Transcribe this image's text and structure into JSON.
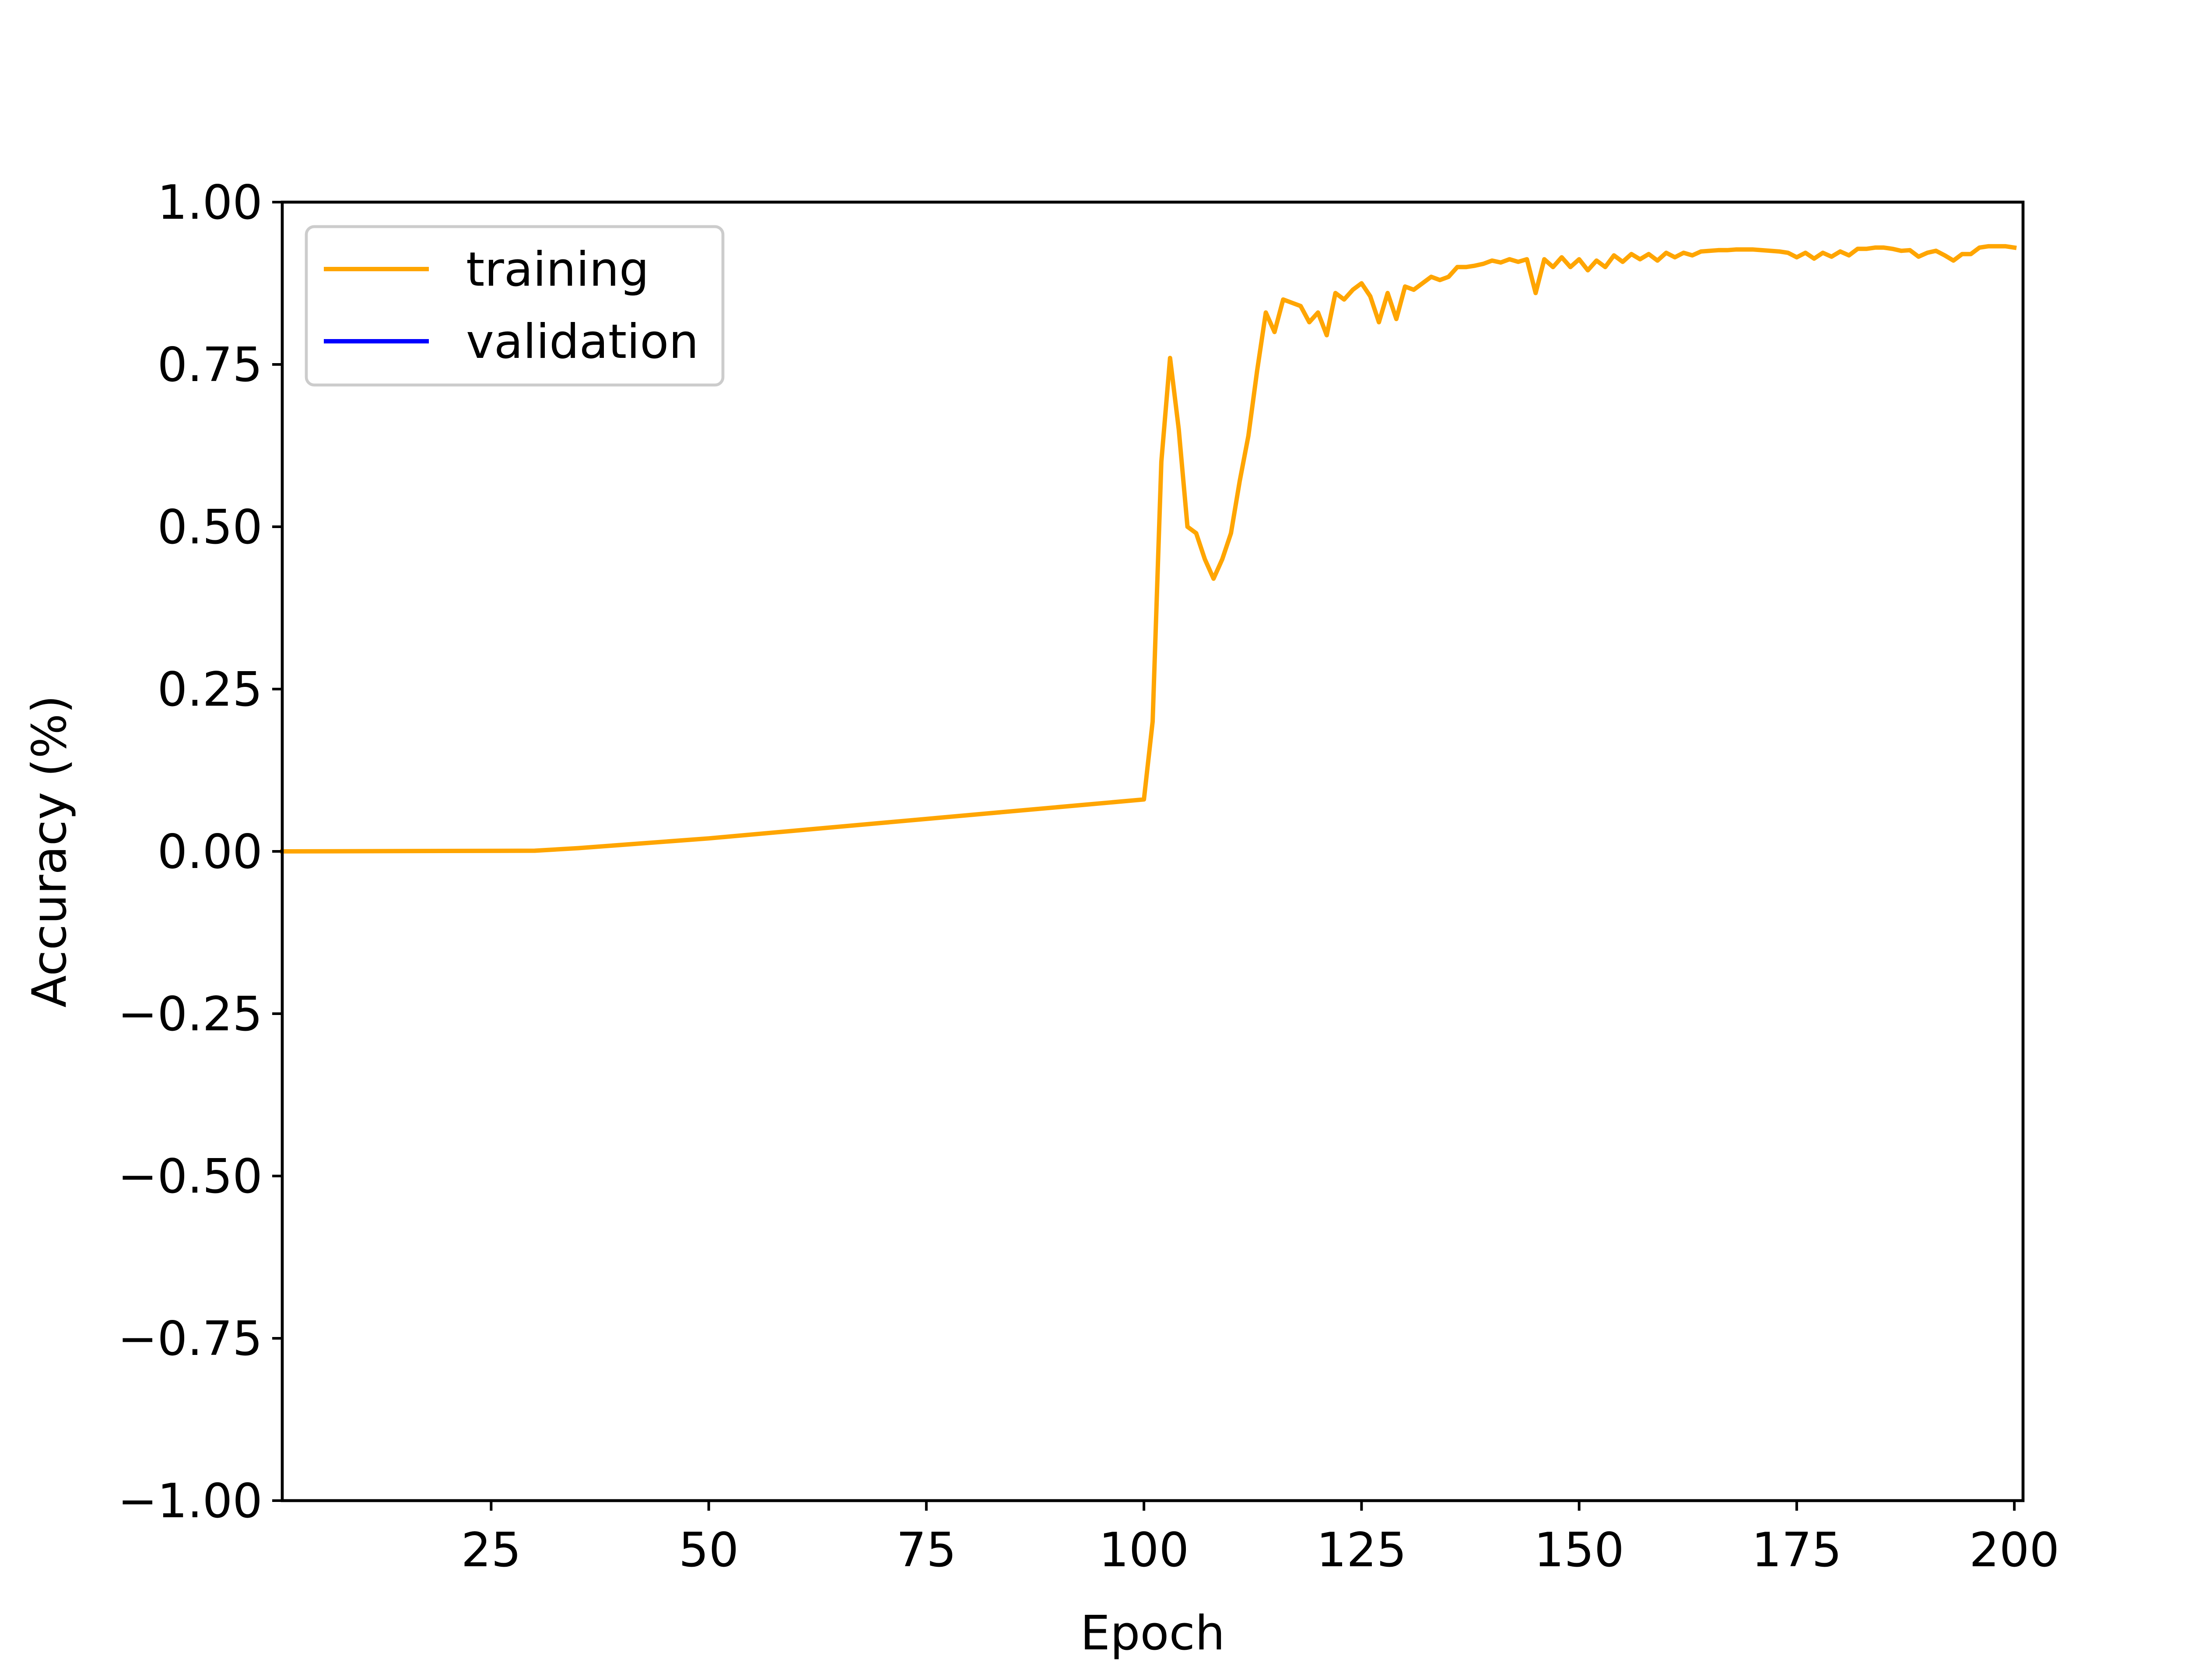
{
  "chart_data": {
    "type": "line",
    "title": "",
    "xlabel": "Epoch",
    "ylabel": "Accuracy (%)",
    "xlim": [
      1,
      201
    ],
    "ylim": [
      -1.0,
      1.0
    ],
    "xticks": [
      25,
      50,
      75,
      100,
      125,
      150,
      175,
      200
    ],
    "yticks": [
      -1.0,
      -0.75,
      -0.5,
      -0.25,
      0.0,
      0.25,
      0.5,
      0.75,
      1.0
    ],
    "xtick_labels": [
      "25",
      "50",
      "75",
      "100",
      "125",
      "150",
      "175",
      "200"
    ],
    "ytick_labels": [
      "−1.00",
      "−0.75",
      "−0.50",
      "−0.25",
      "0.00",
      "0.25",
      "0.50",
      "0.75",
      "1.00"
    ],
    "grid": false,
    "legend_position": "top-left",
    "series": [
      {
        "name": "training",
        "color": "#ffa500",
        "points": [
          [
            1,
            0.0
          ],
          [
            30,
            0.001
          ],
          [
            35,
            0.005
          ],
          [
            50,
            0.02
          ],
          [
            75,
            0.05
          ],
          [
            100,
            0.08
          ],
          [
            101,
            0.2
          ],
          [
            102,
            0.6
          ],
          [
            103,
            0.76
          ],
          [
            104,
            0.65
          ],
          [
            105,
            0.5
          ],
          [
            106,
            0.49
          ],
          [
            107,
            0.45
          ],
          [
            108,
            0.42
          ],
          [
            109,
            0.45
          ],
          [
            110,
            0.49
          ],
          [
            111,
            0.57
          ],
          [
            112,
            0.64
          ],
          [
            113,
            0.74
          ],
          [
            114,
            0.83
          ],
          [
            115,
            0.8
          ],
          [
            116,
            0.85
          ],
          [
            117,
            0.845
          ],
          [
            118,
            0.84
          ],
          [
            119,
            0.815
          ],
          [
            120,
            0.83
          ],
          [
            121,
            0.795
          ],
          [
            122,
            0.86
          ],
          [
            123,
            0.85
          ],
          [
            124,
            0.865
          ],
          [
            125,
            0.875
          ],
          [
            126,
            0.855
          ],
          [
            127,
            0.815
          ],
          [
            128,
            0.86
          ],
          [
            129,
            0.82
          ],
          [
            130,
            0.87
          ],
          [
            131,
            0.865
          ],
          [
            132,
            0.875
          ],
          [
            133,
            0.885
          ],
          [
            134,
            0.88
          ],
          [
            135,
            0.885
          ],
          [
            136,
            0.9
          ],
          [
            137,
            0.9
          ],
          [
            138,
            0.902
          ],
          [
            139,
            0.905
          ],
          [
            140,
            0.91
          ],
          [
            141,
            0.907
          ],
          [
            142,
            0.912
          ],
          [
            143,
            0.908
          ],
          [
            144,
            0.912
          ],
          [
            145,
            0.86
          ],
          [
            146,
            0.912
          ],
          [
            147,
            0.9
          ],
          [
            148,
            0.915
          ],
          [
            149,
            0.9
          ],
          [
            150,
            0.912
          ],
          [
            151,
            0.895
          ],
          [
            152,
            0.91
          ],
          [
            153,
            0.9
          ],
          [
            154,
            0.918
          ],
          [
            155,
            0.908
          ],
          [
            156,
            0.92
          ],
          [
            157,
            0.912
          ],
          [
            158,
            0.92
          ],
          [
            159,
            0.91
          ],
          [
            160,
            0.922
          ],
          [
            161,
            0.915
          ],
          [
            162,
            0.922
          ],
          [
            163,
            0.918
          ],
          [
            164,
            0.924
          ],
          [
            165,
            0.925
          ],
          [
            166,
            0.926
          ],
          [
            167,
            0.926
          ],
          [
            168,
            0.927
          ],
          [
            169,
            0.927
          ],
          [
            170,
            0.927
          ],
          [
            171,
            0.926
          ],
          [
            172,
            0.925
          ],
          [
            173,
            0.924
          ],
          [
            174,
            0.922
          ],
          [
            175,
            0.915
          ],
          [
            176,
            0.922
          ],
          [
            177,
            0.913
          ],
          [
            178,
            0.922
          ],
          [
            179,
            0.916
          ],
          [
            180,
            0.924
          ],
          [
            181,
            0.918
          ],
          [
            182,
            0.928
          ],
          [
            183,
            0.928
          ],
          [
            184,
            0.93
          ],
          [
            185,
            0.93
          ],
          [
            186,
            0.928
          ],
          [
            187,
            0.925
          ],
          [
            188,
            0.926
          ],
          [
            189,
            0.916
          ],
          [
            190,
            0.922
          ],
          [
            191,
            0.925
          ],
          [
            192,
            0.918
          ],
          [
            193,
            0.91
          ],
          [
            194,
            0.92
          ],
          [
            195,
            0.92
          ],
          [
            196,
            0.93
          ],
          [
            197,
            0.932
          ],
          [
            198,
            0.932
          ],
          [
            199,
            0.932
          ],
          [
            200,
            0.93
          ]
        ]
      },
      {
        "name": "validation",
        "color": "#0000ff",
        "points": []
      }
    ]
  }
}
